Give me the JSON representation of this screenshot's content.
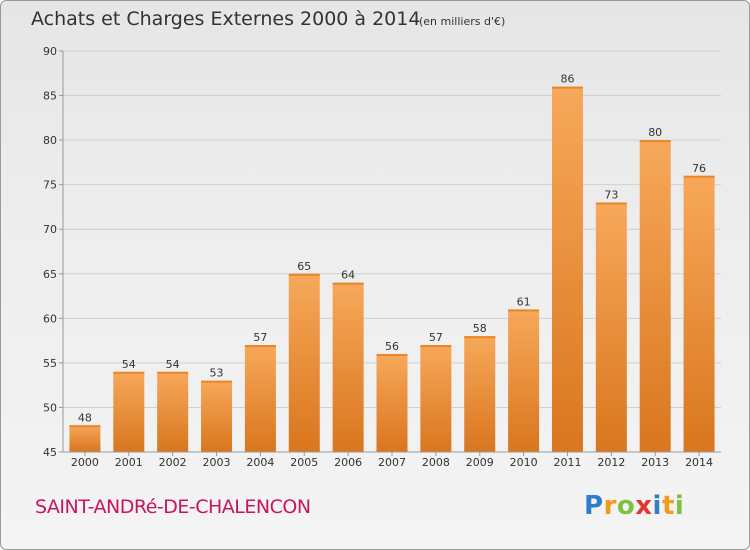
{
  "header": {
    "title": "Achats et Charges Externes 2000 à 2014",
    "subtitle": "(en milliers d'€)"
  },
  "footer": {
    "commune": "SAINT-ANDRé-DE-CHALENCON",
    "logo": [
      {
        "char": "P",
        "color": "#2f7fc8"
      },
      {
        "char": "r",
        "color": "#f29a1d"
      },
      {
        "char": "o",
        "color": "#7dc142"
      },
      {
        "char": "x",
        "color": "#e3362d"
      },
      {
        "char": "i",
        "color": "#2f7fc8"
      },
      {
        "char": "t",
        "color": "#f29a1d"
      },
      {
        "char": "i",
        "color": "#7dc142"
      }
    ]
  },
  "colors": {
    "bar_light": "#f7a85a",
    "bar_dark": "#d9761e",
    "grid": "#d0d0d0",
    "axis": "#999999",
    "text": "#333333"
  },
  "chart_data": {
    "type": "bar",
    "title": "Achats et Charges Externes 2000 à 2014",
    "subtitle": "(en milliers d'€)",
    "categories": [
      "2000",
      "2001",
      "2002",
      "2003",
      "2004",
      "2005",
      "2006",
      "2007",
      "2008",
      "2009",
      "2010",
      "2011",
      "2012",
      "2013",
      "2014"
    ],
    "values": [
      48,
      54,
      54,
      53,
      57,
      65,
      64,
      56,
      57,
      58,
      61,
      86,
      73,
      80,
      76
    ],
    "ylim": [
      45,
      90
    ],
    "yticks": [
      45,
      50,
      55,
      60,
      65,
      70,
      75,
      80,
      85,
      90
    ],
    "grid": true,
    "xlabel": "",
    "ylabel": ""
  }
}
